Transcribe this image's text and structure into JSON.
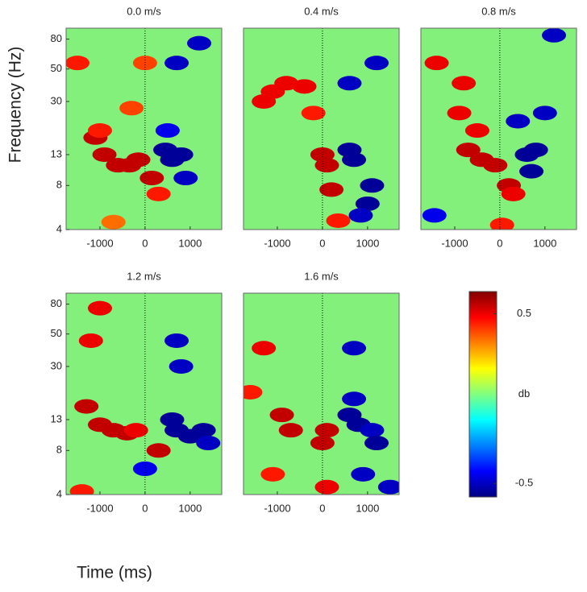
{
  "figure": {
    "xlabel": "Time (ms)",
    "ylabel": "Frequency (Hz)"
  },
  "chart_data": [
    {
      "type": "heatmap",
      "title": "0.0 m/s",
      "xlim": [
        -1750,
        1700
      ],
      "xticks": [
        -1000,
        0,
        1000
      ],
      "ylim": [
        4,
        95
      ],
      "log_y": true,
      "yticks": [
        4,
        8,
        13,
        30,
        50,
        80
      ],
      "x": [
        -1100,
        -900,
        -600,
        -350,
        -150,
        150,
        300,
        -700,
        -1000,
        -300,
        -1500,
        0,
        450,
        600,
        800,
        500,
        900,
        1200,
        700
      ],
      "y": [
        17,
        13,
        11,
        11,
        12,
        9,
        7,
        4.5,
        19,
        27,
        55,
        55,
        14,
        12,
        13,
        19,
        9,
        75,
        55
      ],
      "values": [
        0.55,
        0.55,
        0.55,
        0.55,
        0.55,
        0.55,
        0.45,
        0.35,
        0.45,
        0.4,
        0.45,
        0.4,
        -0.55,
        -0.55,
        -0.55,
        -0.45,
        -0.5,
        -0.5,
        -0.5
      ]
    },
    {
      "type": "heatmap",
      "title": "0.4 m/s",
      "xlim": [
        -1750,
        1700
      ],
      "xticks": [
        -1000,
        0,
        1000
      ],
      "ylim": [
        4,
        95
      ],
      "log_y": true,
      "x": [
        -1100,
        -800,
        -400,
        0,
        100,
        -1300,
        200,
        350,
        -200,
        600,
        700,
        1100,
        1000,
        850,
        600,
        1200
      ],
      "y": [
        35,
        40,
        38,
        13,
        11,
        30,
        7.5,
        4.6,
        25,
        14,
        12,
        8,
        6,
        5,
        40,
        55
      ],
      "values": [
        0.5,
        0.5,
        0.5,
        0.55,
        0.55,
        0.5,
        0.55,
        0.45,
        0.45,
        -0.55,
        -0.55,
        -0.55,
        -0.55,
        -0.5,
        -0.5,
        -0.5
      ]
    },
    {
      "type": "heatmap",
      "title": "0.8 m/s",
      "xlim": [
        -1750,
        1700
      ],
      "xticks": [
        -1000,
        0,
        1000
      ],
      "ylim": [
        4,
        95
      ],
      "log_y": true,
      "x": [
        -1400,
        -800,
        -500,
        -700,
        -400,
        -100,
        200,
        300,
        50,
        -900,
        600,
        800,
        700,
        400,
        1000,
        -1450,
        1200
      ],
      "y": [
        55,
        40,
        19,
        14,
        12,
        11,
        8,
        7,
        4.3,
        25,
        13,
        14,
        10,
        22,
        25,
        5,
        85
      ],
      "values": [
        0.5,
        0.5,
        0.5,
        0.55,
        0.55,
        0.55,
        0.55,
        0.5,
        0.45,
        0.5,
        -0.55,
        -0.55,
        -0.55,
        -0.5,
        -0.5,
        -0.45,
        -0.5
      ]
    },
    {
      "type": "heatmap",
      "title": "1.2 m/s",
      "xlim": [
        -1750,
        1700
      ],
      "xticks": [
        -1000,
        0,
        1000
      ],
      "ylim": [
        4,
        95
      ],
      "log_y": true,
      "yticks": [
        4,
        8,
        13,
        30,
        50,
        80
      ],
      "x": [
        -1300,
        -1000,
        -700,
        -400,
        -200,
        -1200,
        -1000,
        300,
        -1400,
        600,
        700,
        1000,
        1300,
        1400,
        800,
        0,
        700
      ],
      "y": [
        16,
        12,
        11,
        10.5,
        11,
        45,
        75,
        8,
        4.2,
        13,
        11,
        10,
        11,
        9,
        30,
        6,
        45
      ],
      "values": [
        0.55,
        0.55,
        0.55,
        0.55,
        0.5,
        0.5,
        0.5,
        0.55,
        0.45,
        -0.55,
        -0.55,
        -0.55,
        -0.55,
        -0.5,
        -0.5,
        -0.45,
        -0.5
      ]
    },
    {
      "type": "heatmap",
      "title": "1.6 m/s",
      "xlim": [
        -1750,
        1700
      ],
      "xticks": [
        -1000,
        0,
        1000
      ],
      "ylim": [
        4,
        95
      ],
      "log_y": true,
      "x": [
        -1600,
        -900,
        -700,
        -1100,
        0,
        100,
        -1300,
        100,
        600,
        800,
        700,
        1100,
        1200,
        900,
        1500,
        700
      ],
      "y": [
        20,
        14,
        11,
        5.5,
        9,
        11,
        40,
        4.5,
        14,
        12,
        18,
        11,
        9,
        5.5,
        4.5,
        40
      ],
      "values": [
        0.45,
        0.55,
        0.55,
        0.45,
        0.55,
        0.55,
        0.5,
        0.5,
        -0.55,
        -0.55,
        -0.5,
        -0.5,
        -0.55,
        -0.5,
        -0.5,
        -0.5
      ]
    },
    {
      "type": "colorbar",
      "label": "db",
      "clim": [
        -0.58,
        0.63
      ],
      "ticks": [
        -0.5,
        0.5
      ]
    }
  ]
}
